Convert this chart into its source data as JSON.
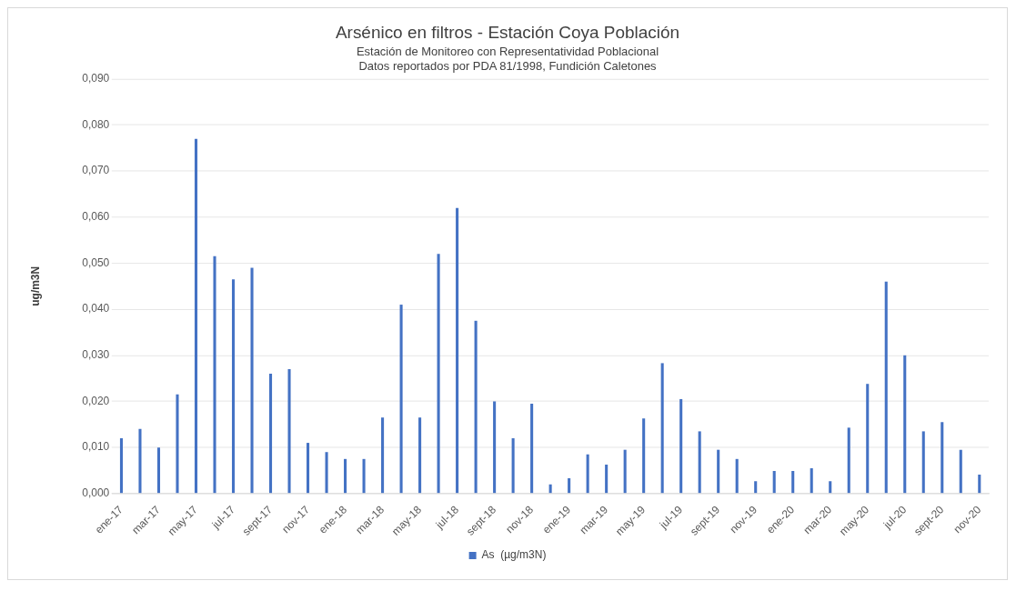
{
  "chart_data": {
    "type": "bar",
    "title": "Arsénico en filtros - Estación Coya Población",
    "subtitle": "Estación de Monitoreo con Representatividad Poblacional",
    "annotations": [
      "Datos reportados por PDA 81/1998, Fundición Caletones"
    ],
    "ylabel": "ug/m3N",
    "categories": [
      "ene-17",
      null,
      "mar-17",
      null,
      "may-17",
      null,
      "jul-17",
      null,
      "sept-17",
      null,
      "nov-17",
      null,
      "ene-18",
      null,
      "mar-18",
      null,
      "may-18",
      null,
      "jul-18",
      null,
      "sept-18",
      null,
      "nov-18",
      null,
      "ene-19",
      null,
      "mar-19",
      null,
      "may-19",
      null,
      "jul-19",
      null,
      "sept-19",
      null,
      "nov-19",
      null,
      "ene-20",
      null,
      "mar-20",
      null,
      "may-20",
      null,
      "jul-20",
      null,
      "sept-20",
      null,
      "nov-20"
    ],
    "series": [
      {
        "name": "As  (µg/m3N)",
        "color": "#4472c4",
        "values": [
          0.012,
          0.014,
          0.01,
          0.0215,
          0.077,
          0.0515,
          0.0465,
          0.049,
          0.026,
          0.027,
          0.011,
          0.009,
          0.0075,
          0.0075,
          0.0165,
          0.041,
          0.0165,
          0.052,
          0.062,
          0.0375,
          0.02,
          0.012,
          0.0195,
          0.002,
          0.0033,
          0.0085,
          0.0063,
          0.0095,
          0.0163,
          0.0283,
          0.0205,
          0.0135,
          0.0095,
          0.0075,
          0.0027,
          0.0049,
          0.0049,
          0.0055,
          0.0027,
          0.0143,
          0.0238,
          0.046,
          0.03,
          0.0135,
          0.0155,
          0.0095,
          0.0041
        ]
      }
    ],
    "ylim": [
      0,
      0.09
    ],
    "yticks": [
      {
        "value": 0,
        "label": "0,000"
      },
      {
        "value": 0.01,
        "label": "0,010"
      },
      {
        "value": 0.02,
        "label": "0,020"
      },
      {
        "value": 0.03,
        "label": "0,030"
      },
      {
        "value": 0.04,
        "label": "0,040"
      },
      {
        "value": 0.05,
        "label": "0,050"
      },
      {
        "value": 0.06,
        "label": "0,060"
      },
      {
        "value": 0.07,
        "label": "0,070"
      },
      {
        "value": 0.08,
        "label": "0,080"
      },
      {
        "value": 0.09,
        "label": "0,090"
      }
    ],
    "grid": "y",
    "legend": "bottom"
  }
}
